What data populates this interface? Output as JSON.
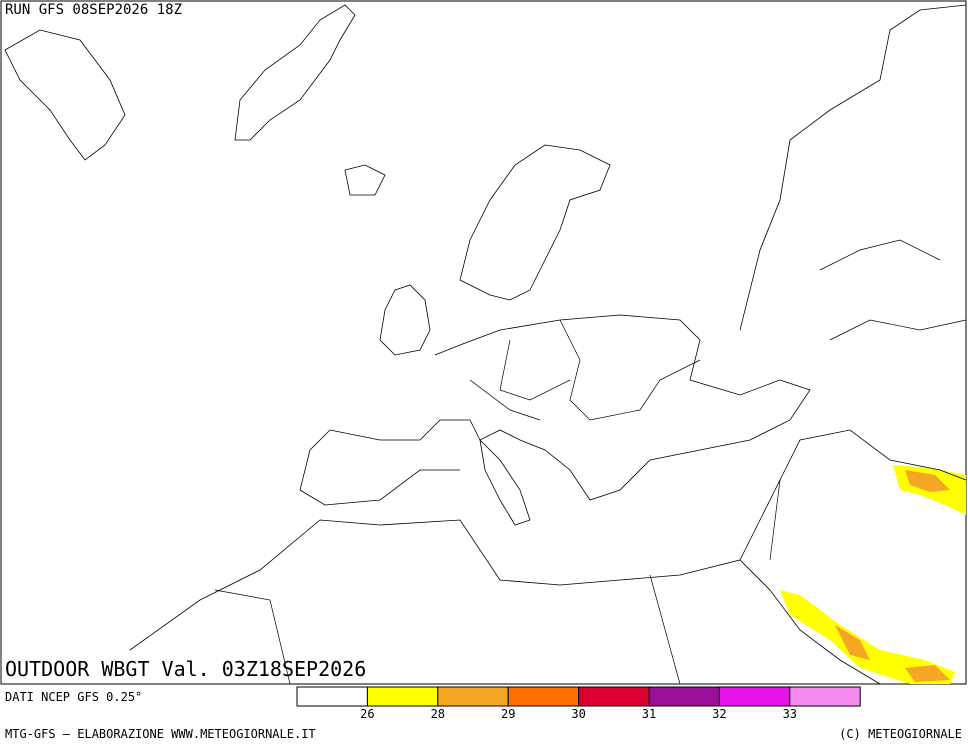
{
  "header": {
    "run": "RUN GFS 08SEP2026 18Z"
  },
  "map": {
    "title": "OUTDOOR WBGT Val. 03Z18SEP2026"
  },
  "legend": {
    "source": "DATI NCEP GFS 0.25°",
    "colors": [
      "#ffffff",
      "#ffff00",
      "#f5a623",
      "#ff7000",
      "#dc0032",
      "#9b0f9b",
      "#e614e6",
      "#f58cf0"
    ],
    "ticks": [
      26,
      28,
      29,
      30,
      31,
      32,
      33
    ]
  },
  "footer": {
    "left": "MTG-GFS — ELABORAZIONE WWW.METEOGIORNALE.IT",
    "right": "(C) METEOGIORNALE"
  }
}
